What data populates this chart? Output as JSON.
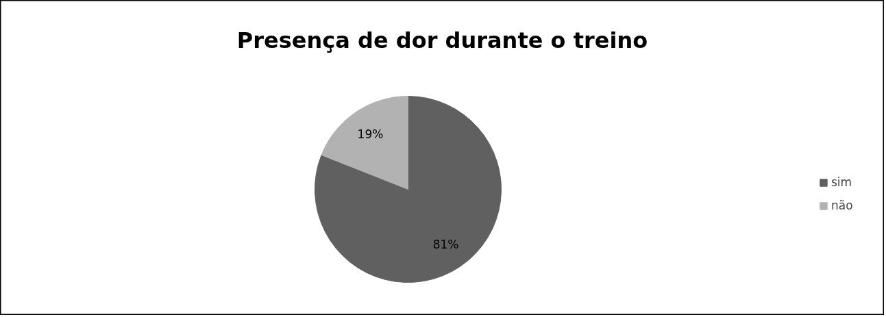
{
  "chart_data": {
    "type": "pie",
    "title": "Presença de dor durante o treino",
    "categories": [
      "sim",
      "não"
    ],
    "values": [
      81,
      19
    ],
    "colors": [
      "#606060",
      "#b2b2b2"
    ],
    "value_labels": [
      "81%",
      "19%"
    ],
    "legend": "right"
  }
}
